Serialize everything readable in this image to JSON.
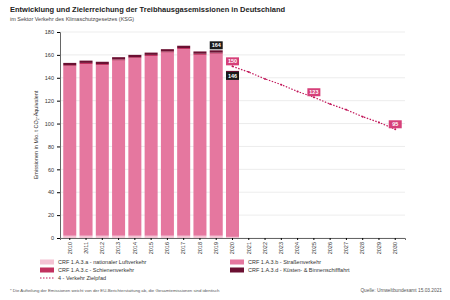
{
  "chart_data": {
    "type": "bar",
    "title": "Entwicklung und Zielerreichung der Treibhausgasemissionen in Deutschland",
    "subtitle": "im Sektor Verkehr des Klimaschutzgesetzes (KSG)",
    "y_label": "Emissionen in Mio. t CO₂-Äquivalent",
    "categories": [
      "2010",
      "2011",
      "2012",
      "2013",
      "2014",
      "2015",
      "2016",
      "2017",
      "2018",
      "2019",
      "2020",
      "2021",
      "2022",
      "2023",
      "2024",
      "2025",
      "2026",
      "2027",
      "2028",
      "2029",
      "2030"
    ],
    "stacked": true,
    "grid": true,
    "legend": "bottom",
    "ylim": [
      0,
      180
    ],
    "yticks": [
      0,
      20,
      40,
      60,
      80,
      100,
      120,
      140,
      160,
      180
    ],
    "series": [
      {
        "name": "CRF 1.A.3.a - nationaler Luftverkehr",
        "type": "bar",
        "color": "#f4c3d4",
        "values": [
          2,
          2,
          2,
          2,
          2,
          2,
          2,
          2,
          2,
          2,
          1,
          null,
          null,
          null,
          null,
          null,
          null,
          null,
          null,
          null,
          null
        ]
      },
      {
        "name": "CRF 1.A.3.b - Straßenverkehr",
        "type": "bar",
        "color": "#e5779f",
        "values": [
          148,
          150,
          149,
          153,
          155,
          157,
          160,
          163,
          158,
          159,
          142,
          null,
          null,
          null,
          null,
          null,
          null,
          null,
          null,
          null,
          null
        ]
      },
      {
        "name": "CRF 1.A.3.c - Schienenverkehr",
        "type": "bar",
        "color": "#c2305f",
        "values": [
          1,
          1,
          1,
          1,
          1,
          1,
          1,
          1,
          1,
          1,
          1,
          null,
          null,
          null,
          null,
          null,
          null,
          null,
          null,
          null,
          null
        ]
      },
      {
        "name": "CRF 1.A.3.d - Küsten- & Binnenschifffahrt",
        "type": "bar",
        "color": "#6b1032",
        "values": [
          2,
          2,
          2,
          2,
          2,
          2,
          2,
          2,
          2,
          2,
          2,
          null,
          null,
          null,
          null,
          null,
          null,
          null,
          null,
          null,
          null
        ]
      },
      {
        "name": "4 - Verkehr Zielpfad",
        "type": "line",
        "color": "#c2185b",
        "line_style": "dotted",
        "marker": "circle",
        "values": [
          null,
          null,
          null,
          null,
          null,
          null,
          null,
          null,
          null,
          null,
          150,
          145,
          139,
          134,
          128,
          123,
          117,
          112,
          106,
          101,
          95
        ]
      }
    ],
    "annotations": [
      {
        "text": "164",
        "x": "2019",
        "y": 164,
        "color": "#1a1a1a"
      },
      {
        "text": "150",
        "x": "2020",
        "y": 150,
        "color": "#d6407a"
      },
      {
        "text": "146",
        "x": "2020",
        "y": 146,
        "color": "#1a1a1a"
      },
      {
        "text": "123",
        "x": "2025",
        "y": 123,
        "color": "#d6407a"
      },
      {
        "text": "95",
        "x": "2030",
        "y": 95,
        "color": "#d6407a"
      }
    ],
    "footnote": "* Die Aufteilung der Emissionen weicht von der EU-Berichterstattung ab, die Gesamtemissionen sind identisch",
    "source": "Quelle: Umweltbundesamt 15.03.2021"
  }
}
